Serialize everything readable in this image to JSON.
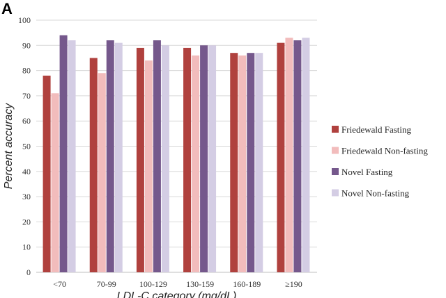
{
  "panel_label": "A",
  "chart_data": {
    "type": "bar",
    "title": "",
    "xlabel": "LDL-C category (mg/dL)",
    "ylabel": "Percent accuracy",
    "ylim": [
      0,
      100
    ],
    "yticks": [
      0,
      10,
      20,
      30,
      40,
      50,
      60,
      70,
      80,
      90,
      100
    ],
    "grid": true,
    "legend_position": "right",
    "categories": [
      "<70",
      "70-99",
      "100-129",
      "130-159",
      "160-189",
      "≥190"
    ],
    "series": [
      {
        "name": "Friedewald Fasting",
        "color": "#b0413e",
        "values": [
          78,
          85,
          89,
          89,
          87,
          91
        ]
      },
      {
        "name": "Friedewald Non-fasting",
        "color": "#f2bcbc",
        "values": [
          71,
          79,
          84,
          86,
          86,
          93
        ]
      },
      {
        "name": "Novel Fasting",
        "color": "#75588c",
        "values": [
          94,
          92,
          92,
          90,
          87,
          92
        ]
      },
      {
        "name": "Novel Non-fasting",
        "color": "#d4cde4",
        "values": [
          92,
          91,
          90,
          90,
          87,
          93
        ]
      }
    ]
  }
}
